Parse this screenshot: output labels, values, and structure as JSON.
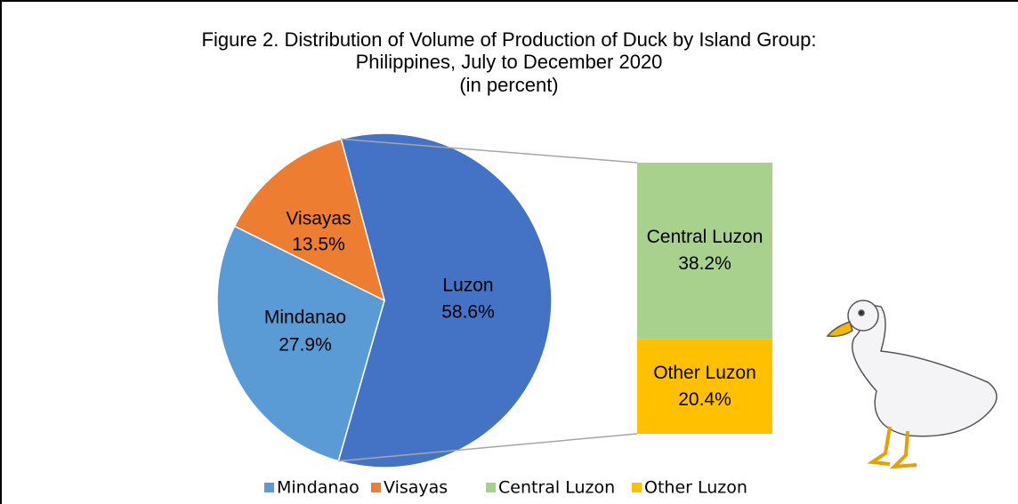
{
  "chart_data": {
    "type": "bar-of-pie",
    "title": [
      "Figure 2.  Distribution of Volume of Production of Duck by Island Group:",
      "Philippines, July to December 2020"
    ],
    "subtitle": "(in percent)",
    "pie": {
      "categories": [
        "Luzon",
        "Mindanao",
        "Visayas"
      ],
      "values": [
        58.6,
        27.9,
        13.5
      ],
      "value_labels": [
        "58.6%",
        "27.9%",
        "13.5%"
      ],
      "colors": [
        "#4472c4",
        "#5b9bd5",
        "#ed7d31"
      ]
    },
    "bar": {
      "categories": [
        "Central Luzon",
        "Other Luzon"
      ],
      "values": [
        38.2,
        20.4
      ],
      "value_labels": [
        "38.2%",
        "20.4%"
      ],
      "colors": [
        "#a9d18e",
        "#ffc000"
      ]
    }
  }
}
